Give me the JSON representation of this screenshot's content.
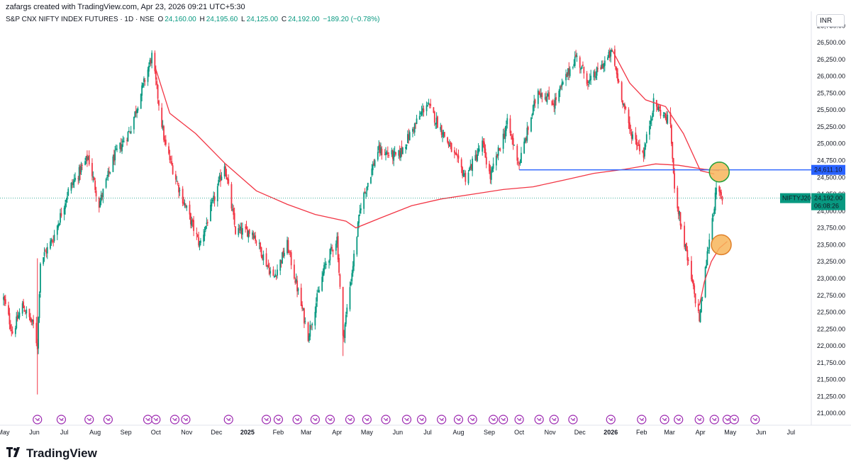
{
  "caption": "zafargs created with TradingView.com, Apr 23, 2026 09:21 UTC+5:30",
  "symbol": {
    "name": "S&P CNX NIFTY INDEX FUTURES · 1D · NSE",
    "o_label": "O",
    "o": "24,160.00",
    "h_label": "H",
    "h": "24,195.60",
    "l_label": "L",
    "l": "24,125.00",
    "c_label": "C",
    "c": "24,192.00",
    "change": "−189.20 (−0.78%)"
  },
  "currency": "INR",
  "brand": "TradingView",
  "colors": {
    "up": "#089981",
    "down": "#f23645",
    "ma": "#f23645",
    "hline": "#2962ff",
    "marker_fill": "#f7b55a",
    "marker_stroke_green": "#22a03b",
    "marker_stroke_orange": "#e0802a",
    "price_tag": "#089981"
  },
  "chart_data": {
    "type": "candlestick",
    "title": "S&P CNX NIFTY INDEX FUTURES · 1D · NSE",
    "y_axis": {
      "ticks": [
        "26,750.00",
        "26,500.00",
        "26,250.00",
        "26,000.00",
        "25,750.00",
        "25,500.00",
        "25,250.00",
        "25,000.00",
        "24,750.00",
        "24,500.00",
        "24,250.00",
        "24,000.00",
        "23,750.00",
        "23,500.00",
        "23,250.00",
        "23,000.00",
        "22,750.00",
        "22,500.00",
        "22,250.00",
        "22,000.00",
        "21,750.00",
        "21,500.00",
        "21,250.00",
        "21,000.00"
      ],
      "range": [
        20950,
        26900
      ]
    },
    "x_axis": {
      "ticks": [
        "May",
        "Jun",
        "Jul",
        "Aug",
        "Sep",
        "Oct",
        "Nov",
        "Dec",
        "2025",
        "Feb",
        "Mar",
        "Apr",
        "May",
        "Jun",
        "Jul",
        "Aug",
        "Sep",
        "Oct",
        "Nov",
        "Dec",
        "2026",
        "Feb",
        "Mar",
        "Apr",
        "May",
        "Jun",
        "Jul"
      ],
      "range": [
        "2024-05-01",
        "2026-07-20"
      ]
    },
    "price_path": [
      [
        "2024-05-01",
        22700
      ],
      [
        "2024-05-10",
        22200
      ],
      [
        "2024-05-20",
        22600
      ],
      [
        "2024-05-31",
        22300
      ],
      [
        "2024-06-04",
        22000
      ],
      [
        "2024-06-07",
        23250
      ],
      [
        "2024-06-20",
        23600
      ],
      [
        "2024-07-05",
        24300
      ],
      [
        "2024-07-25",
        24800
      ],
      [
        "2024-08-05",
        24100
      ],
      [
        "2024-08-20",
        24800
      ],
      [
        "2024-09-05",
        25200
      ],
      [
        "2024-09-27",
        26300
      ],
      [
        "2024-10-10",
        25000
      ],
      [
        "2024-10-25",
        24300
      ],
      [
        "2024-11-14",
        23500
      ],
      [
        "2024-11-29",
        24200
      ],
      [
        "2024-12-09",
        24700
      ],
      [
        "2024-12-20",
        23700
      ],
      [
        "2025-01-06",
        23700
      ],
      [
        "2025-01-27",
        23000
      ],
      [
        "2025-02-10",
        23500
      ],
      [
        "2025-03-03",
        22150
      ],
      [
        "2025-03-20",
        23200
      ],
      [
        "2025-04-01",
        23600
      ],
      [
        "2025-04-07",
        22100
      ],
      [
        "2025-04-25",
        24100
      ],
      [
        "2025-05-12",
        24900
      ],
      [
        "2025-06-01",
        24800
      ],
      [
        "2025-06-30",
        25600
      ],
      [
        "2025-07-15",
        25200
      ],
      [
        "2025-08-08",
        24500
      ],
      [
        "2025-08-25",
        25000
      ],
      [
        "2025-09-02",
        24500
      ],
      [
        "2025-09-19",
        25300
      ],
      [
        "2025-10-01",
        24700
      ],
      [
        "2025-10-20",
        25800
      ],
      [
        "2025-11-05",
        25600
      ],
      [
        "2025-11-27",
        26300
      ],
      [
        "2025-12-10",
        25900
      ],
      [
        "2026-01-02",
        26350
      ],
      [
        "2026-01-20",
        25200
      ],
      [
        "2026-02-03",
        24850
      ],
      [
        "2026-02-13",
        25600
      ],
      [
        "2026-03-02",
        25300
      ],
      [
        "2026-03-05",
        24500
      ],
      [
        "2026-03-10",
        24000
      ],
      [
        "2026-03-20",
        23200
      ],
      [
        "2026-03-31",
        22400
      ],
      [
        "2026-04-10",
        23600
      ],
      [
        "2026-04-17",
        24300
      ],
      [
        "2026-04-23",
        24192
      ]
    ],
    "series": [
      {
        "name": "",
        "type": "moving_average",
        "points": [
          [
            "2024-09-30",
            26150
          ],
          [
            "2024-10-15",
            25450
          ],
          [
            "2024-11-10",
            25150
          ],
          [
            "2024-12-10",
            24700
          ],
          [
            "2025-01-10",
            24300
          ],
          [
            "2025-02-10",
            24100
          ],
          [
            "2025-03-10",
            23950
          ],
          [
            "2025-04-10",
            23850
          ],
          [
            "2025-04-20",
            23750
          ],
          [
            "2025-05-15",
            23900
          ],
          [
            "2025-06-15",
            24080
          ],
          [
            "2025-07-15",
            24180
          ],
          [
            "2025-08-15",
            24250
          ],
          [
            "2025-09-15",
            24320
          ],
          [
            "2025-10-15",
            24360
          ],
          [
            "2025-11-15",
            24460
          ],
          [
            "2025-12-15",
            24560
          ],
          [
            "2026-01-15",
            24620
          ],
          [
            "2026-02-15",
            24700
          ],
          [
            "2026-03-10",
            24680
          ],
          [
            "2026-04-05",
            24620
          ],
          [
            "2026-04-20",
            24600
          ]
        ]
      },
      {
        "name": "",
        "type": "moving_average",
        "points": [
          [
            "2026-01-02",
            26400
          ],
          [
            "2026-01-20",
            25900
          ],
          [
            "2026-02-05",
            25650
          ],
          [
            "2026-02-25",
            25550
          ],
          [
            "2026-03-15",
            25150
          ],
          [
            "2026-04-01",
            24600
          ],
          [
            "2026-04-15",
            24550
          ]
        ]
      },
      {
        "name": "",
        "type": "moving_average",
        "points": [
          [
            "2026-03-31",
            22600
          ],
          [
            "2026-04-05",
            22950
          ],
          [
            "2026-04-12",
            23250
          ],
          [
            "2026-04-20",
            23450
          ],
          [
            "2026-04-28",
            23550
          ]
        ]
      }
    ],
    "horizontal_line": {
      "value": 24611.1,
      "from": "2025-10-01",
      "label": "24,611.10"
    },
    "last_price": {
      "symbol": "NIFTYJ2026",
      "value": 24192.0,
      "label": "24,192.00",
      "countdown": "06:08:26"
    },
    "markers": [
      {
        "date": "2026-04-20",
        "value": 24580,
        "stroke": "green"
      },
      {
        "date": "2026-04-22",
        "value": 23500,
        "stroke": "orange"
      }
    ],
    "event_icons": [
      "2024-06-04",
      "2024-06-28",
      "2024-07-26",
      "2024-08-14",
      "2024-09-23",
      "2024-10-01",
      "2024-10-20",
      "2024-10-31",
      "2024-12-13",
      "2025-01-20",
      "2025-02-01",
      "2025-02-20",
      "2025-03-10",
      "2025-03-25",
      "2025-04-14",
      "2025-05-01",
      "2025-05-20",
      "2025-06-10",
      "2025-06-25",
      "2025-07-15",
      "2025-08-01",
      "2025-08-15",
      "2025-09-05",
      "2025-09-15",
      "2025-10-01",
      "2025-10-21",
      "2025-11-05",
      "2025-11-24",
      "2026-01-01",
      "2026-02-01",
      "2026-02-24",
      "2026-03-10",
      "2026-03-31",
      "2026-04-15",
      "2026-04-28",
      "2026-05-05",
      "2026-05-26"
    ]
  }
}
